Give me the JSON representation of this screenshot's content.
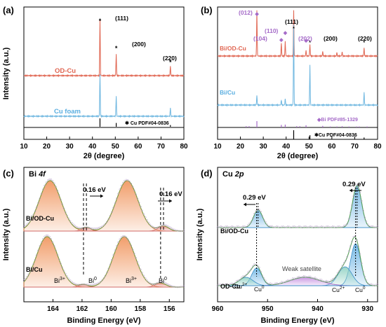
{
  "chart_data": [
    {
      "type": "line",
      "panel": "(a)",
      "xlabel": "2θ (degree)",
      "ylabel": "Intensity (a.u.)",
      "xlim": [
        10,
        80
      ],
      "xticks": [
        "10",
        "20",
        "30",
        "40",
        "50",
        "60",
        "70",
        "80"
      ],
      "series": [
        {
          "name": "OD-Cu",
          "color": "#e06652",
          "peaks": [
            {
              "x": 43.3,
              "h": 1.0
            },
            {
              "x": 50.4,
              "h": 0.38
            },
            {
              "x": 74.1,
              "h": 0.17
            }
          ]
        },
        {
          "name": "Cu foam",
          "color": "#6fb7e0",
          "peaks": [
            {
              "x": 43.3,
              "h": 1.0
            },
            {
              "x": 50.4,
              "h": 0.48
            },
            {
              "x": 74.1,
              "h": 0.2
            }
          ]
        }
      ],
      "annotations": [
        "(111)",
        "(200)",
        "(220)"
      ],
      "reference": {
        "label": "Cu PDF#04-0836",
        "lines": [
          {
            "x": 43.3,
            "h": 1.0
          },
          {
            "x": 50.4,
            "h": 0.45
          },
          {
            "x": 74.1,
            "h": 0.2
          }
        ]
      }
    },
    {
      "type": "line",
      "panel": "(b)",
      "xlabel": "2θ (degree)",
      "ylabel": "Intensity (a.u.)",
      "xlim": [
        10,
        80
      ],
      "xticks": [
        "10",
        "20",
        "30",
        "40",
        "50",
        "60",
        "70",
        "80"
      ],
      "series": [
        {
          "name": "Bi/OD-Cu",
          "color": "#e06652",
          "peaks": [
            {
              "x": 27.2,
              "h": 1.0
            },
            {
              "x": 37.9,
              "h": 0.28
            },
            {
              "x": 39.6,
              "h": 0.32
            },
            {
              "x": 43.3,
              "h": 1.0
            },
            {
              "x": 48.7,
              "h": 0.12
            },
            {
              "x": 50.4,
              "h": 0.25
            },
            {
              "x": 56.0,
              "h": 0.1
            },
            {
              "x": 62.2,
              "h": 0.08
            },
            {
              "x": 64.5,
              "h": 0.09
            },
            {
              "x": 74.1,
              "h": 0.18
            }
          ]
        },
        {
          "name": "Bi/Cu",
          "color": "#6fb7e0",
          "peaks": [
            {
              "x": 27.2,
              "h": 0.12
            },
            {
              "x": 37.9,
              "h": 0.06
            },
            {
              "x": 39.6,
              "h": 0.08
            },
            {
              "x": 43.3,
              "h": 1.0
            },
            {
              "x": 50.4,
              "h": 0.5
            },
            {
              "x": 74.1,
              "h": 0.16
            }
          ]
        }
      ],
      "annotations": [
        "(012)",
        "(104)",
        "(110)",
        "(111)",
        "(202)",
        "(200)",
        "(220)"
      ],
      "reference_bi": {
        "label": "Bi PDF#85-1329",
        "lines": [
          {
            "x": 22.5,
            "h": 0.2
          },
          {
            "x": 23.8,
            "h": 0.2
          },
          {
            "x": 27.2,
            "h": 1.0
          },
          {
            "x": 37.9,
            "h": 0.4
          },
          {
            "x": 39.6,
            "h": 0.45
          },
          {
            "x": 44.6,
            "h": 0.2
          },
          {
            "x": 46.0,
            "h": 0.2
          },
          {
            "x": 48.7,
            "h": 0.35
          },
          {
            "x": 56.0,
            "h": 0.25
          },
          {
            "x": 59.3,
            "h": 0.15
          },
          {
            "x": 62.2,
            "h": 0.15
          },
          {
            "x": 64.5,
            "h": 0.2
          },
          {
            "x": 67.5,
            "h": 0.15
          },
          {
            "x": 70.8,
            "h": 0.15
          },
          {
            "x": 72.0,
            "h": 0.15
          },
          {
            "x": 75.4,
            "h": 0.15
          }
        ]
      },
      "reference_cu": {
        "label": "Cu PDF#04-0836",
        "lines": [
          {
            "x": 43.3,
            "h": 1.0
          },
          {
            "x": 50.4,
            "h": 0.45
          },
          {
            "x": 74.1,
            "h": 0.2
          }
        ]
      }
    },
    {
      "type": "area",
      "panel": "Bi 4f",
      "xlabel": "Binding Energy (eV)",
      "ylabel": "Intensity (a.u.)",
      "xlim": [
        166,
        155
      ],
      "xticks": [
        "164",
        "162",
        "160",
        "158",
        "156"
      ],
      "series": [
        {
          "name": "Bi/OD-Cu",
          "components": [
            {
              "center": 164.2,
              "height": 1.0,
              "width": 0.75
            },
            {
              "center": 158.9,
              "height": 1.0,
              "width": 0.75
            },
            {
              "center": 161.7,
              "height": 0.07,
              "width": 0.3
            },
            {
              "center": 156.4,
              "height": 0.1,
              "width": 0.35
            }
          ]
        },
        {
          "name": "Bi/Cu",
          "components": [
            {
              "center": 164.4,
              "height": 1.0,
              "width": 0.75
            },
            {
              "center": 159.1,
              "height": 1.0,
              "width": 0.75
            },
            {
              "center": 161.9,
              "height": 0.05,
              "width": 0.3
            },
            {
              "center": 156.6,
              "height": 0.08,
              "width": 0.35
            }
          ]
        }
      ],
      "annotations": [
        "0.16 eV",
        "0.16 eV",
        "Bi",
        "3+",
        "Bi",
        "0",
        "Bi",
        "3+",
        "Bi",
        "0"
      ]
    },
    {
      "type": "area",
      "panel": "Cu 2p",
      "xlabel": "Binding Energy (eV)",
      "ylabel": "Intensity (a.u.)",
      "xlim": [
        960,
        928
      ],
      "xticks": [
        "960",
        "950",
        "940",
        "930"
      ],
      "series": [
        {
          "name": "Bi/OD-Cu",
          "components": [
            {
              "center": 932.1,
              "height": 1.0,
              "width": 0.9
            },
            {
              "center": 951.9,
              "height": 0.42,
              "width": 0.9
            }
          ]
        },
        {
          "name": "OD-Cu",
          "components": [
            {
              "center": 932.4,
              "height": 1.0,
              "width": 1.0
            },
            {
              "center": 934.5,
              "height": 0.45,
              "width": 1.4
            },
            {
              "center": 942.5,
              "height": 0.2,
              "width": 3.0
            },
            {
              "center": 952.2,
              "height": 0.42,
              "width": 1.0
            },
            {
              "center": 954.3,
              "height": 0.2,
              "width": 1.4
            }
          ]
        }
      ],
      "annotations": [
        "0.29 eV",
        "0.29 eV",
        "Weak satellite",
        "Cu",
        "2+",
        "Cu",
        "0",
        "Cu",
        "2+",
        "Cu",
        "0"
      ]
    }
  ]
}
